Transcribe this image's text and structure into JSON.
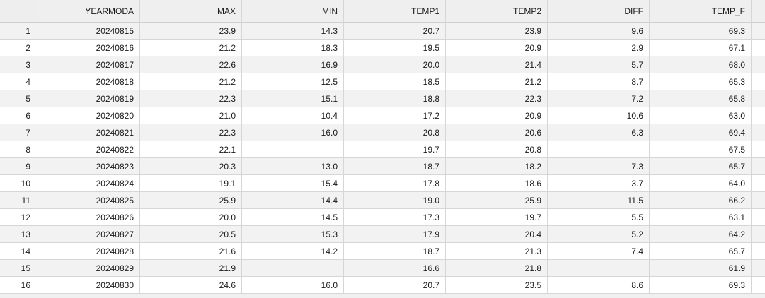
{
  "columns": [
    "YEARMODA",
    "MAX",
    "MIN",
    "TEMP1",
    "TEMP2",
    "DIFF",
    "TEMP_F"
  ],
  "rows": [
    {
      "index": "1",
      "cells": [
        "20240815",
        "23.9",
        "14.3",
        "20.7",
        "23.9",
        "9.6",
        "69.3"
      ]
    },
    {
      "index": "2",
      "cells": [
        "20240816",
        "21.2",
        "18.3",
        "19.5",
        "20.9",
        "2.9",
        "67.1"
      ]
    },
    {
      "index": "3",
      "cells": [
        "20240817",
        "22.6",
        "16.9",
        "20.0",
        "21.4",
        "5.7",
        "68.0"
      ]
    },
    {
      "index": "4",
      "cells": [
        "20240818",
        "21.2",
        "12.5",
        "18.5",
        "21.2",
        "8.7",
        "65.3"
      ]
    },
    {
      "index": "5",
      "cells": [
        "20240819",
        "22.3",
        "15.1",
        "18.8",
        "22.3",
        "7.2",
        "65.8"
      ]
    },
    {
      "index": "6",
      "cells": [
        "20240820",
        "21.0",
        "10.4",
        "17.2",
        "20.9",
        "10.6",
        "63.0"
      ]
    },
    {
      "index": "7",
      "cells": [
        "20240821",
        "22.3",
        "16.0",
        "20.8",
        "20.6",
        "6.3",
        "69.4"
      ]
    },
    {
      "index": "8",
      "cells": [
        "20240822",
        "22.1",
        "",
        "19.7",
        "20.8",
        "",
        "67.5"
      ]
    },
    {
      "index": "9",
      "cells": [
        "20240823",
        "20.3",
        "13.0",
        "18.7",
        "18.2",
        "7.3",
        "65.7"
      ]
    },
    {
      "index": "10",
      "cells": [
        "20240824",
        "19.1",
        "15.4",
        "17.8",
        "18.6",
        "3.7",
        "64.0"
      ]
    },
    {
      "index": "11",
      "cells": [
        "20240825",
        "25.9",
        "14.4",
        "19.0",
        "25.9",
        "11.5",
        "66.2"
      ]
    },
    {
      "index": "12",
      "cells": [
        "20240826",
        "20.0",
        "14.5",
        "17.3",
        "19.7",
        "5.5",
        "63.1"
      ]
    },
    {
      "index": "13",
      "cells": [
        "20240827",
        "20.5",
        "15.3",
        "17.9",
        "20.4",
        "5.2",
        "64.2"
      ]
    },
    {
      "index": "14",
      "cells": [
        "20240828",
        "21.6",
        "14.2",
        "18.7",
        "21.3",
        "7.4",
        "65.7"
      ]
    },
    {
      "index": "15",
      "cells": [
        "20240829",
        "21.9",
        "",
        "16.6",
        "21.8",
        "",
        "61.9"
      ]
    },
    {
      "index": "16",
      "cells": [
        "20240830",
        "24.6",
        "16.0",
        "20.7",
        "23.5",
        "8.6",
        "69.3"
      ]
    }
  ]
}
